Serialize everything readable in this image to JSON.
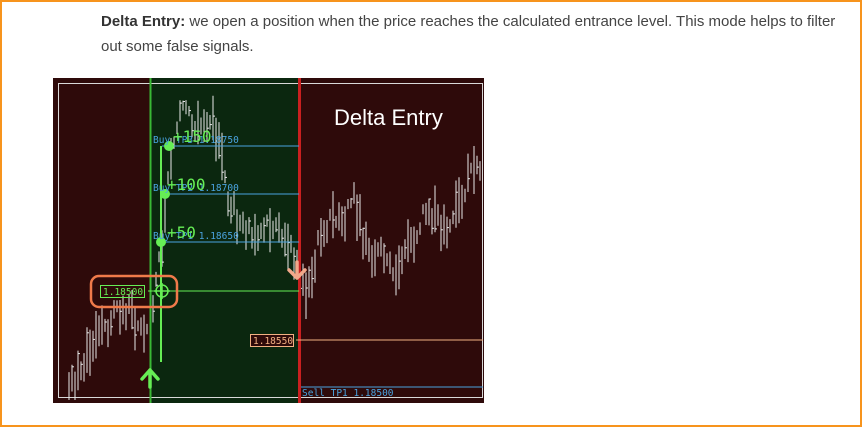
{
  "text": {
    "lead_bold": "Delta Entry:",
    "body": " we open a position when the price reaches the calculated entrance level. This mode helps to filter out some false signals."
  },
  "chart": {
    "title": "Delta Entry",
    "entry_price_label": "1.18500",
    "sell_price_label": "1.18550",
    "buy_tp_labels": [
      "Buy TP3 1.18750",
      "Buy TP2 1.18700",
      "Buy TP1 1.18650"
    ],
    "profit_labels": [
      "+150",
      "+100",
      "+50"
    ],
    "sell_tp_label": "Sell TP1 1.18500"
  },
  "colors": {
    "frame": "#f7941d",
    "chart_bg": "#2e0a0a",
    "buy_zone": "#0b270f",
    "buy_line": "#39b835",
    "sell_line": "#c92020",
    "tp_line": "#4aa3df",
    "label_green": "#66ee55",
    "entry_highlight": "#f07a4a",
    "sell_price": "#f2b182",
    "candle": "#e8e8e8"
  },
  "icons": {
    "buy_arrow": "up-arrow-icon",
    "sell_arrow": "down-arrow-icon",
    "entry_marker": "crosshair-icon"
  }
}
